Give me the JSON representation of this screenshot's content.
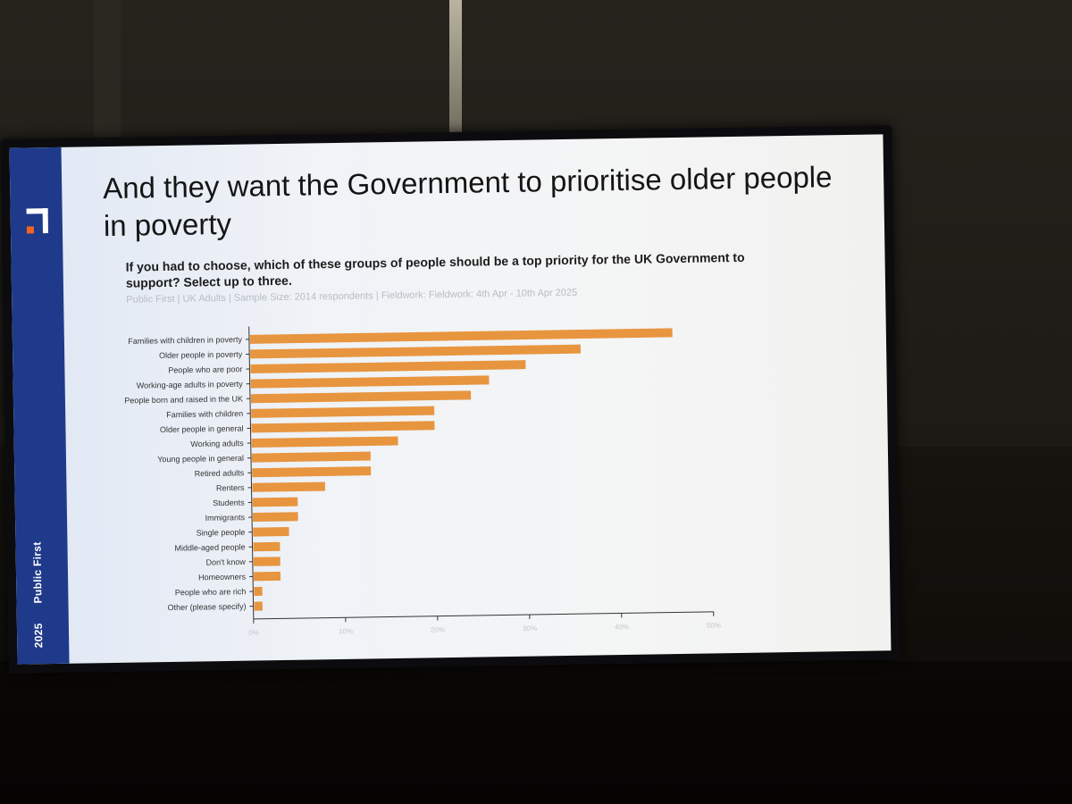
{
  "slide": {
    "title": "And they want the Government to prioritise older people in poverty",
    "question": "If you had to choose, which of these groups of people should be a top priority for the UK Government to support? Select up to three.",
    "source": "Public First | UK Adults | Sample Size: 2014 respondents | Fieldwork: Fieldwork: 4th Apr - 10th Apr 2025",
    "sidebar_year": "2025",
    "sidebar_brand": "Public First"
  },
  "colors": {
    "bar": "#e8953f",
    "sidebar": "#1f3a8a",
    "logo_accent": "#f26522",
    "axis": "#333333"
  },
  "chart_data": {
    "type": "bar",
    "orientation": "horizontal",
    "categories": [
      "Families with children in poverty",
      "Older people in poverty",
      "People who are poor",
      "Working-age adults in poverty",
      "People born and raised in the UK",
      "Families with children",
      "Older people in general",
      "Working adults",
      "Young people in general",
      "Retired adults",
      "Renters",
      "Students",
      "Immigrants",
      "Single people",
      "Middle-aged people",
      "Don't know",
      "Homeowners",
      "People who are rich",
      "Other (please specify)"
    ],
    "values": [
      46,
      36,
      30,
      26,
      24,
      20,
      20,
      16,
      13,
      13,
      8,
      5,
      5,
      4,
      3,
      3,
      3,
      1,
      1
    ],
    "xlim": [
      0,
      50
    ],
    "xticks": [
      "0%",
      "10%",
      "20%",
      "30%",
      "40%",
      "50%"
    ],
    "title": "",
    "xlabel": "",
    "ylabel": "",
    "grid": false,
    "legend": "none"
  }
}
